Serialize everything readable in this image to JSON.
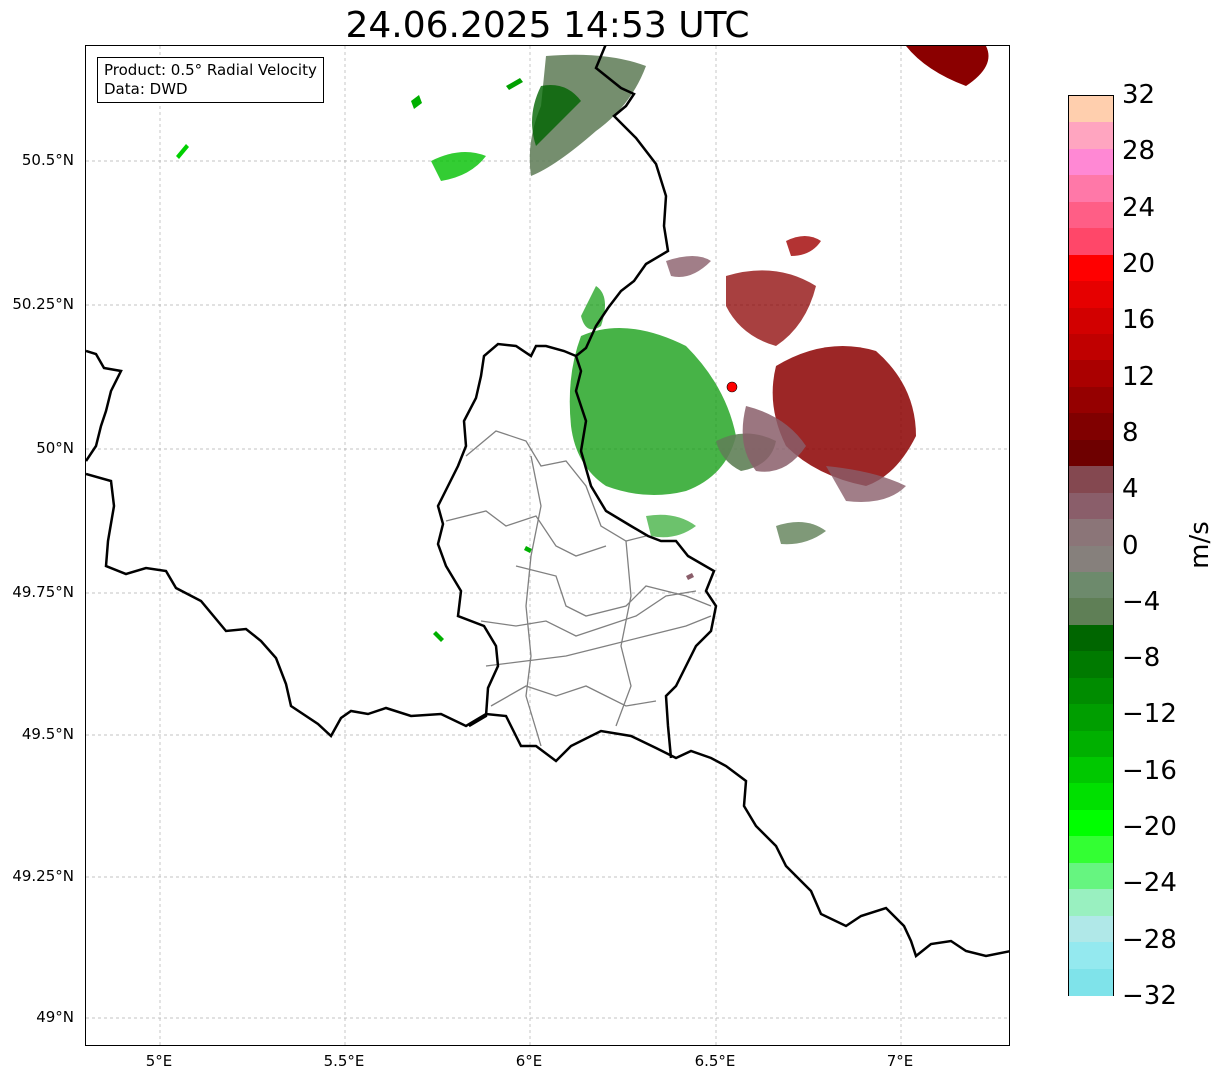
{
  "title": "24.06.2025 14:53 UTC",
  "info": {
    "product": "Product: 0.5° Radial Velocity",
    "source": "Data: DWD"
  },
  "lat_ticks": [
    "50.5°N",
    "50.25°N",
    "50°N",
    "49.75°N",
    "49.5°N",
    "49.25°N",
    "49°N"
  ],
  "lon_ticks": [
    "5°E",
    "5.5°E",
    "6°E",
    "6.5°E",
    "7°E"
  ],
  "colorbar": {
    "unit": "m/s",
    "min": -32,
    "max": 32,
    "labels": [
      "32",
      "28",
      "24",
      "20",
      "16",
      "12",
      "8",
      "4",
      "0",
      "−4",
      "−8",
      "−12",
      "−16",
      "−20",
      "−24",
      "−28",
      "−32"
    ],
    "colors_top_to_bottom": [
      "#ffcfae",
      "#ffa5c0",
      "#ff88d4",
      "#ff78a8",
      "#ff5e86",
      "#ff4769",
      "#ff0000",
      "#e60000",
      "#d20000",
      "#c00000",
      "#aa0000",
      "#950000",
      "#800000",
      "#6e0000",
      "#844850",
      "#8a5e6a",
      "#8b7578",
      "#86807c",
      "#6d8a6c",
      "#5f7f56",
      "#006600",
      "#007a00",
      "#008c00",
      "#009e00",
      "#00b000",
      "#00c800",
      "#00e000",
      "#00ff00",
      "#33ff33",
      "#66f580",
      "#99f0c0",
      "#b0e8e8",
      "#94e9ef",
      "#7fe3ea"
    ]
  },
  "radar_site": {
    "color": "#ff0000"
  }
}
